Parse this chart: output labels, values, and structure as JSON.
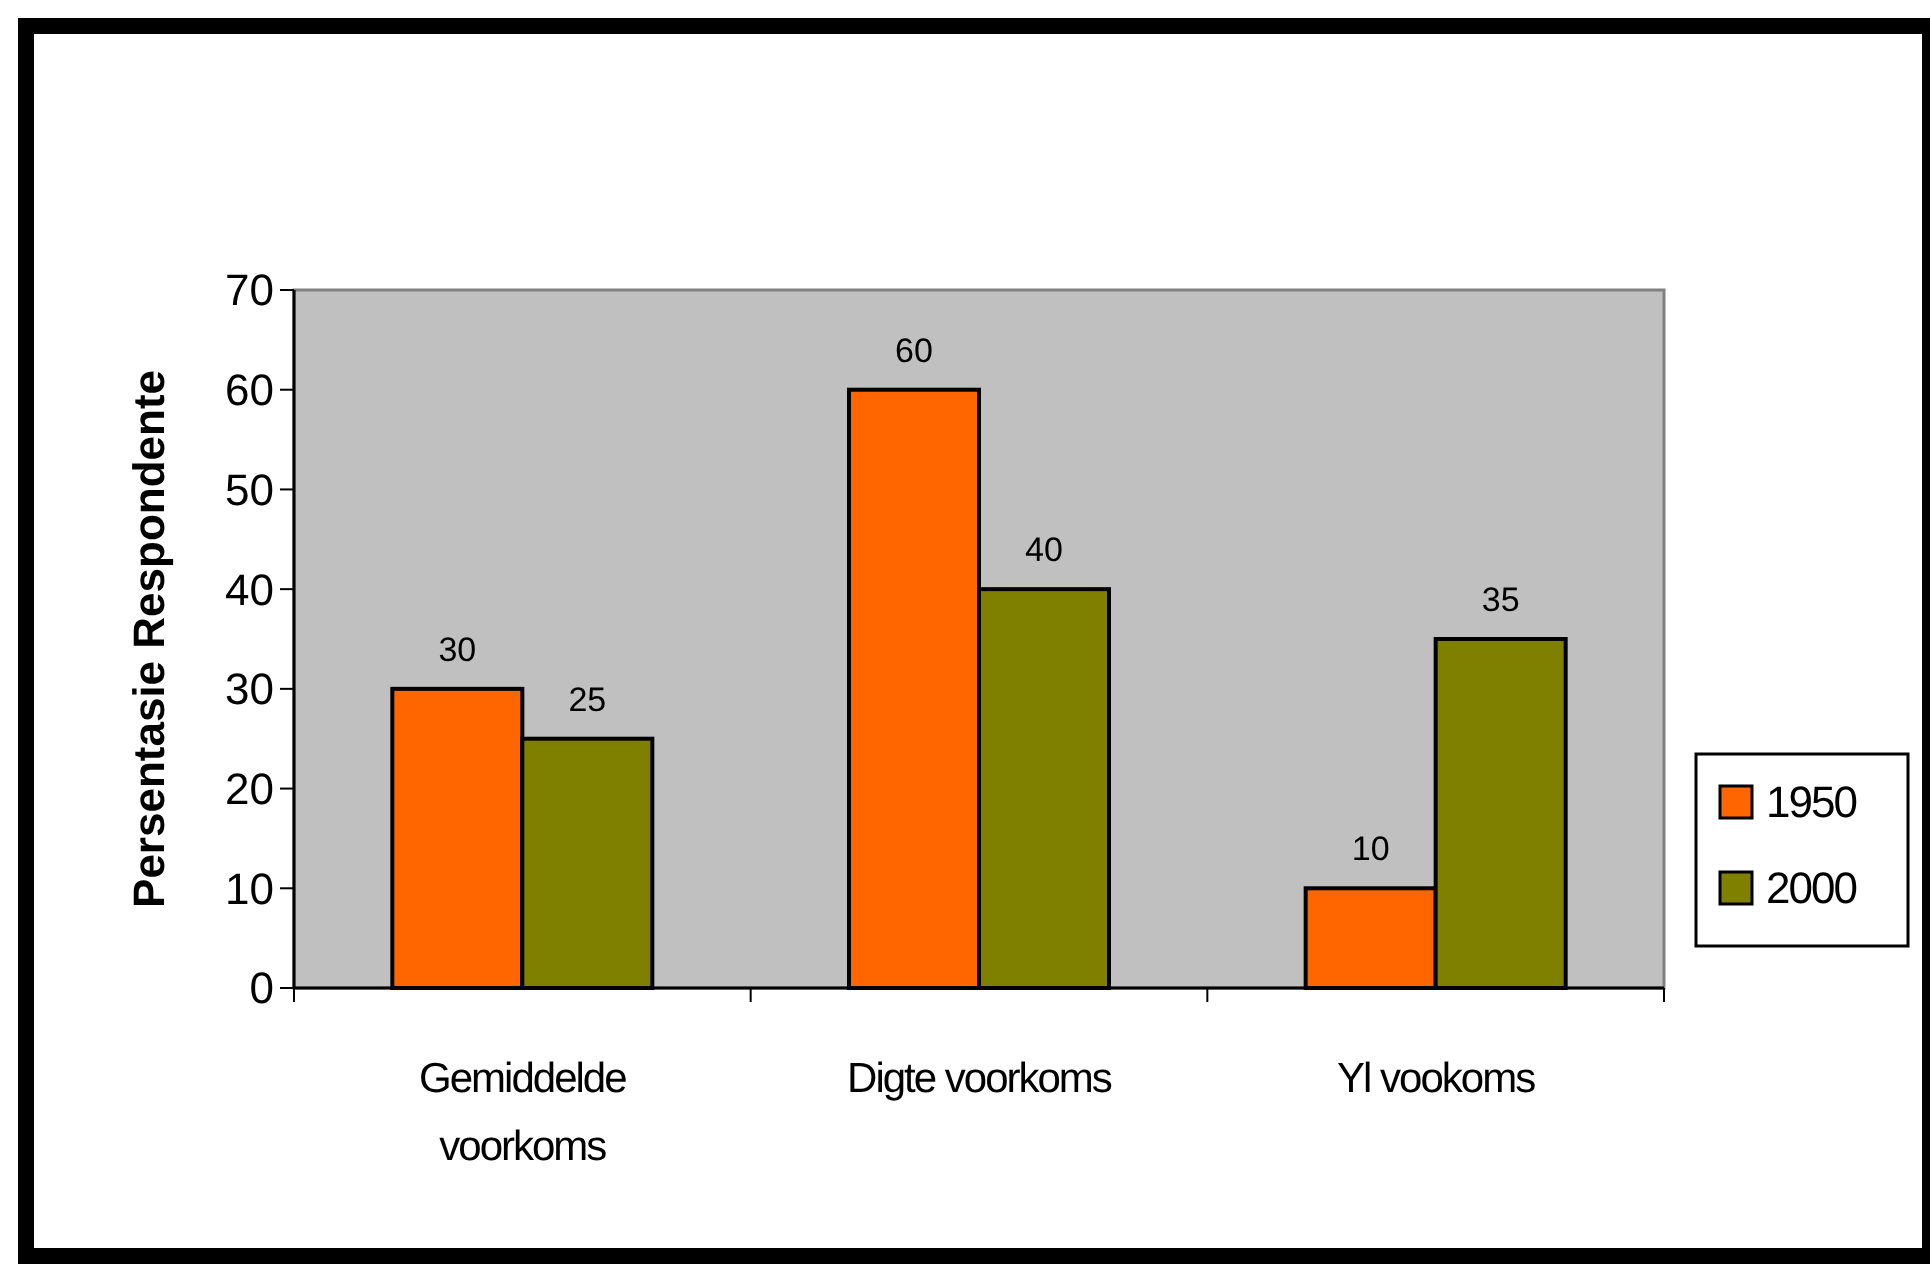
{
  "chart_data": {
    "type": "bar",
    "ylabel": "Persentasie Respondente",
    "categories": [
      "Gemiddelde voorkoms",
      "Digte voorkoms",
      "Yl vookoms"
    ],
    "series": [
      {
        "name": "1950",
        "color": "#ff6600",
        "values": [
          30,
          60,
          10
        ]
      },
      {
        "name": "2000",
        "color": "#808000",
        "values": [
          25,
          40,
          35
        ]
      }
    ],
    "ylim": [
      0,
      70
    ],
    "yticks": [
      0,
      10,
      20,
      30,
      40,
      50,
      60,
      70
    ],
    "grid": false,
    "legend": "right",
    "data_labels": true
  }
}
